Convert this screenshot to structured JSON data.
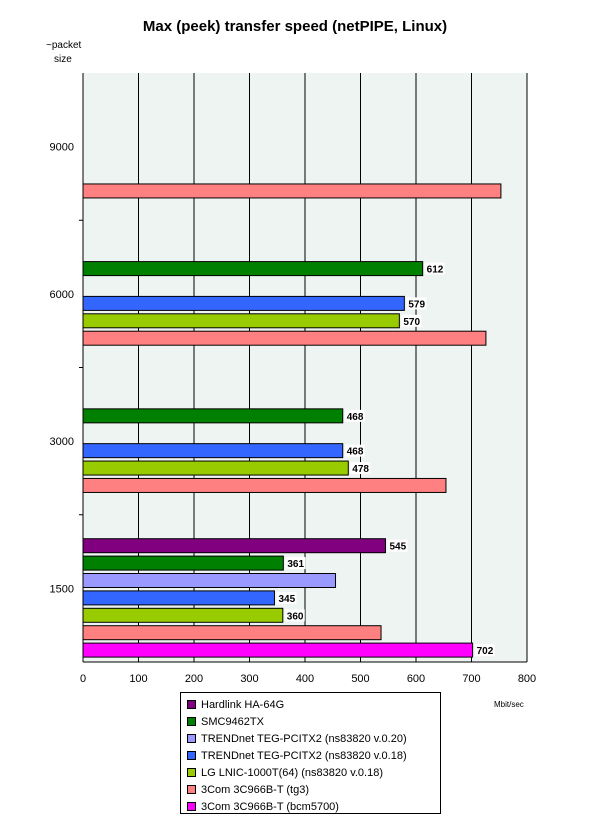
{
  "chart_data": {
    "type": "bar",
    "orientation": "horizontal",
    "title": "Max (peek) transfer speed (netPIPE, Linux)",
    "ylabel_line1": "~packet",
    "ylabel_line2": "size",
    "xlabel": "Mbit/sec",
    "xlim": [
      0,
      800
    ],
    "xticks": [
      "0",
      "100",
      "200",
      "300",
      "400",
      "500",
      "600",
      "700",
      "800"
    ],
    "grid": true,
    "legend_position": "bottom",
    "categories": [
      "9000",
      "6000",
      "3000",
      "1500"
    ],
    "series": [
      {
        "name": "Hardlink HA-64G",
        "color": "#800080",
        "values": [
          null,
          null,
          null,
          545
        ],
        "labels": [
          null,
          null,
          null,
          "545"
        ]
      },
      {
        "name": "SMC9462TX",
        "color": "#008000",
        "values": [
          null,
          612,
          468,
          361
        ],
        "labels": [
          null,
          "612",
          "468",
          "361"
        ]
      },
      {
        "name": "TRENDnet TEG-PCITX2 (ns83820 v.0.20)",
        "color": "#9999FF",
        "values": [
          null,
          null,
          null,
          455
        ],
        "labels": [
          null,
          null,
          null,
          null
        ]
      },
      {
        "name": "TRENDnet TEG-PCITX2 (ns83820 v.0.18)",
        "color": "#3366FF",
        "values": [
          null,
          579,
          468,
          345
        ],
        "labels": [
          null,
          "579",
          "468",
          "345"
        ]
      },
      {
        "name": "LG LNIC-1000T(64) (ns83820 v.0.18)",
        "color": "#99CC00",
        "values": [
          null,
          570,
          478,
          360
        ],
        "labels": [
          null,
          "570",
          "478",
          "360"
        ]
      },
      {
        "name": "3Com 3C966B-T (tg3)",
        "color": "#FF8080",
        "values": [
          753,
          726,
          654,
          537
        ],
        "labels": [
          null,
          null,
          null,
          null
        ]
      },
      {
        "name": "3Com 3C966B-T (bcm5700)",
        "color": "#FF00FF",
        "values": [
          null,
          null,
          null,
          702
        ],
        "labels": [
          null,
          null,
          null,
          "702"
        ]
      }
    ]
  }
}
